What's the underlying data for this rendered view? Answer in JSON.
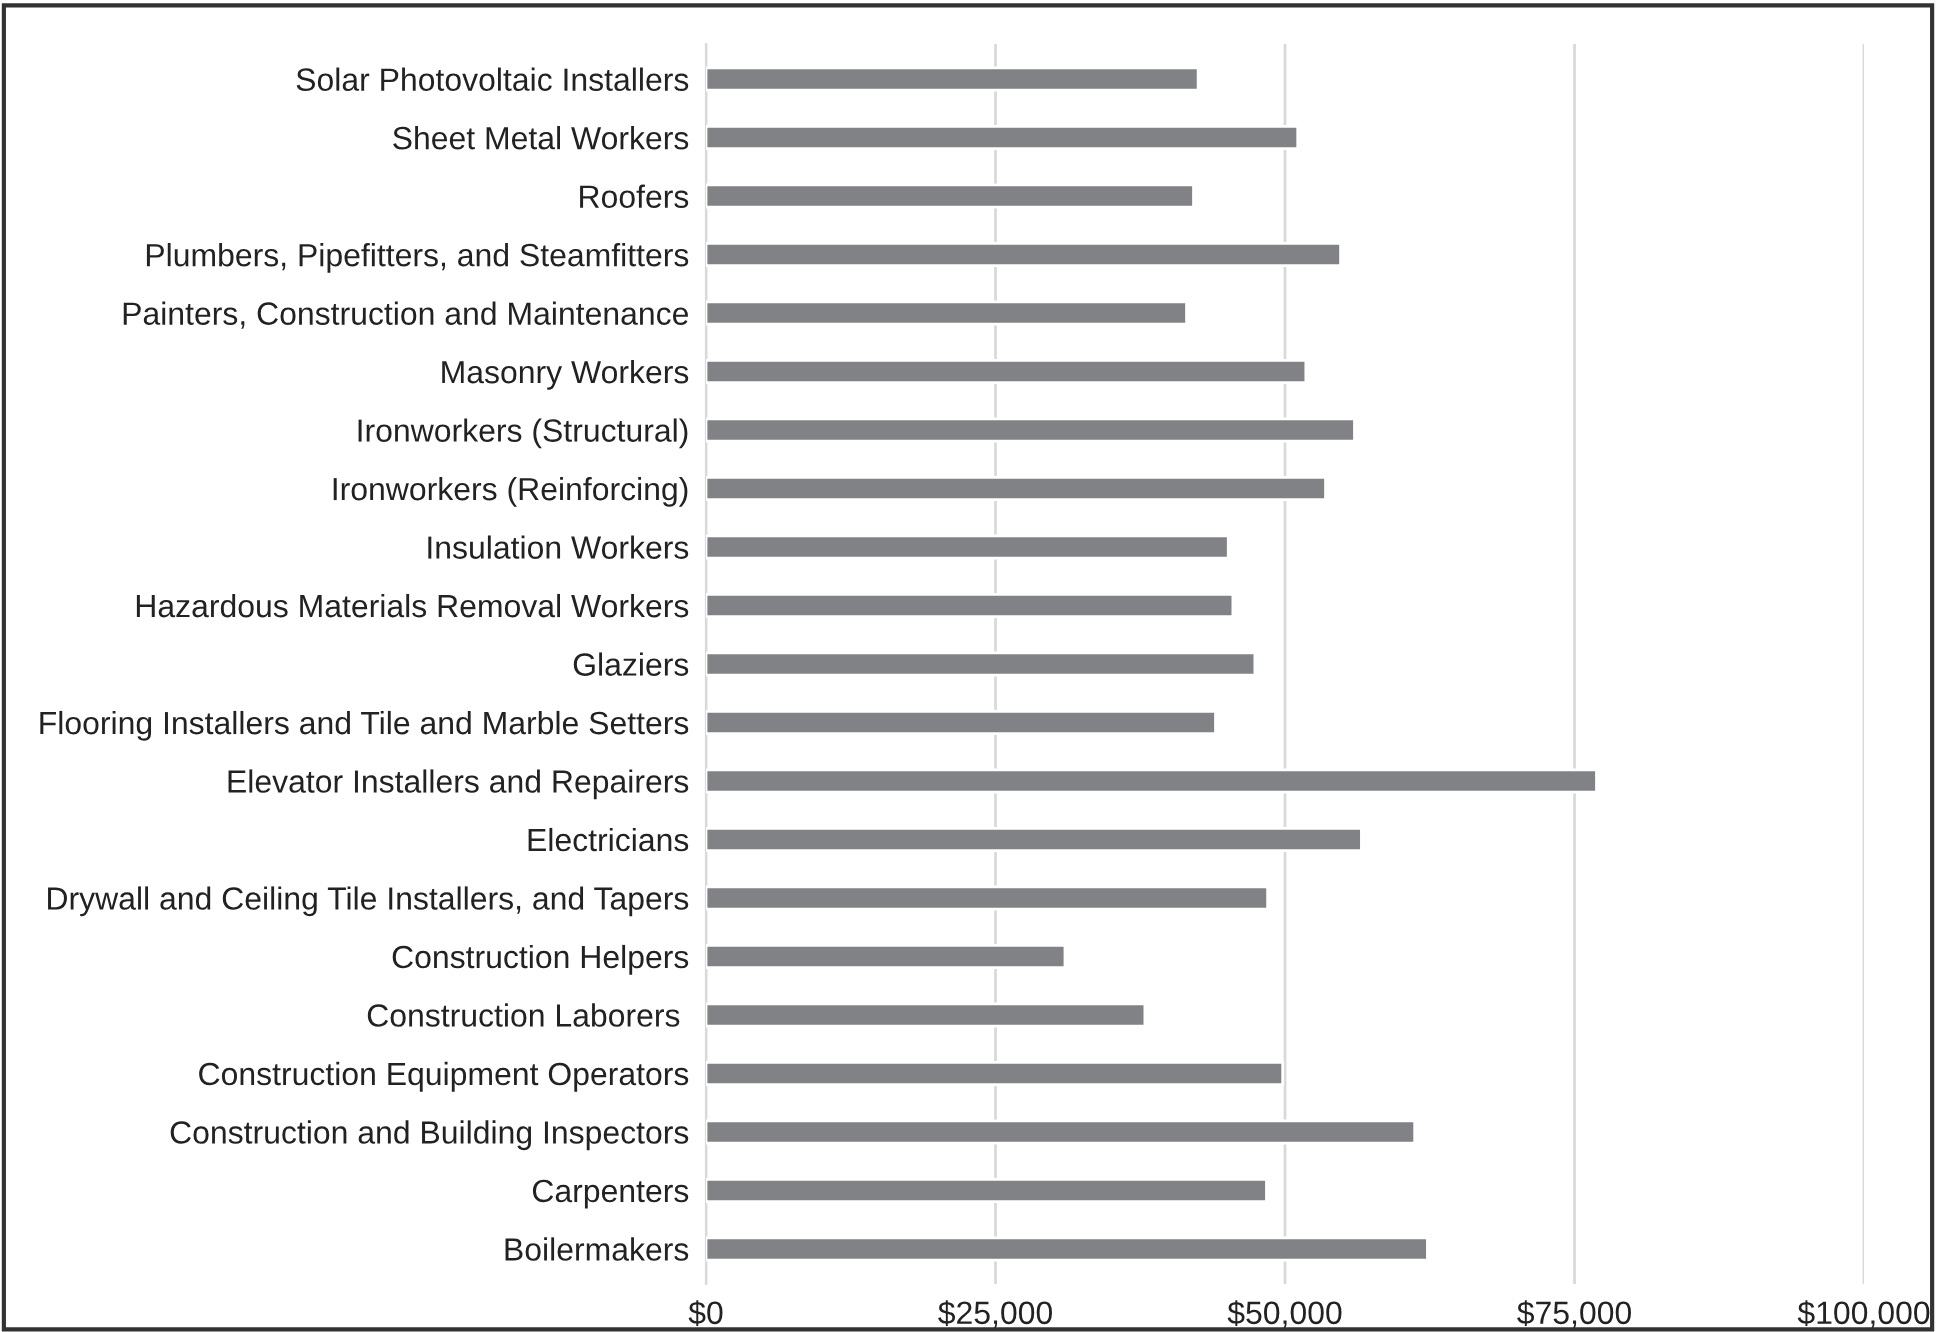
{
  "chart_data": {
    "type": "bar",
    "orientation": "horizontal",
    "categories": [
      "Solar Photovoltaic Installers",
      "Sheet Metal Workers",
      "Roofers",
      "Plumbers, Pipefitters, and Steamfitters",
      "Painters, Construction and Maintenance",
      "Masonry Workers",
      "Ironworkers (Structural)",
      "Ironworkers (Reinforcing)",
      "Insulation Workers",
      "Hazardous Materials Removal Workers",
      "Glaziers",
      "Flooring Installers and Tile and Marble Setters",
      "Elevator Installers and Repairers",
      "Electricians",
      "Drywall and Ceiling Tile Installers, and Tapers",
      "Construction Helpers",
      "Construction Laborers ",
      "Construction Equipment Operators",
      "Construction and Building Inspectors",
      "Carpenters",
      "Boilermakers"
    ],
    "values": [
      42500,
      51100,
      42100,
      54800,
      41500,
      51800,
      56000,
      53500,
      45100,
      45500,
      47400,
      44000,
      76900,
      56600,
      48500,
      31000,
      37900,
      49800,
      61200,
      48400,
      62300
    ],
    "color": "#808285",
    "xlim": [
      0,
      100000
    ],
    "xticks": [
      {
        "value": 0,
        "label": "$0"
      },
      {
        "value": 25000,
        "label": "$25,000"
      },
      {
        "value": 50000,
        "label": "$50,000"
      },
      {
        "value": 75000,
        "label": "$75,000"
      },
      {
        "value": 100000,
        "label": "$100,000"
      }
    ],
    "grid": "x"
  }
}
